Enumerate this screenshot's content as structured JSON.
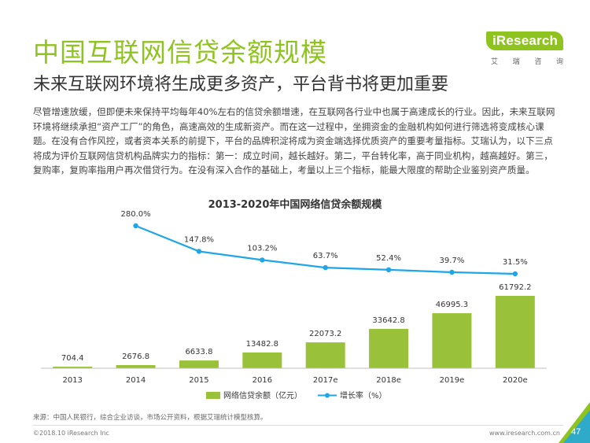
{
  "header": {
    "title": "中国互联网信贷余额规模",
    "subtitle": "未来互联网环境将生成更多资产，平台背书将更加重要"
  },
  "logo": {
    "name": "iResearch",
    "sub": [
      "艾",
      "瑞",
      "咨",
      "询"
    ]
  },
  "body_text": "尽管增速放缓，但即便未来保持平均每年40%左右的信贷余额增速，在互联网各行业中也属于高速成长的行业。因此，未来互联网环境将继续承担“资产工厂”的角色，高速高效的生成新资产。而在这一过程中，坐拥资金的金融机构如何进行筛选将变成核心课题。在没有合作风控，或者资本关系的前提下，平台的品牌积淀将成为资金端选择优质资产的重要考量指标。艾瑞认为，以下三点将成为评价互联网信贷机构品牌实力的指标：第一：成立时间，越长越好。第二，平台转化率，高于同业机构，越高越好。第三，复购率，复购率指用户再次借贷行为。在没有深入合作的基础上，考量以上三个指标，能最大限度的帮助企业鉴别资产质量。",
  "chart_data": {
    "type": "bar",
    "title": "2013-2020年中国网络信贷余额规模",
    "categories": [
      "2013",
      "2014",
      "2015",
      "2016",
      "2017e",
      "2018e",
      "2019e",
      "2020e"
    ],
    "series": [
      {
        "name": "网络信贷余额（亿元）",
        "type": "bar",
        "values": [
          704.4,
          2676.8,
          6633.8,
          13482.8,
          22073.2,
          33642.8,
          46995.3,
          61792.2
        ],
        "labels": [
          "704.4",
          "2676.8",
          "6633.8",
          "13482.8",
          "22073.2",
          "33642.8",
          "46995.3",
          "61792.2"
        ]
      },
      {
        "name": "增长率（%）",
        "type": "line",
        "values": [
          null,
          280.0,
          147.8,
          103.2,
          63.7,
          52.4,
          39.7,
          31.5
        ],
        "labels": [
          "",
          "280.0%",
          "147.8%",
          "103.2%",
          "63.7%",
          "52.4%",
          "39.7%",
          "31.5%"
        ]
      }
    ],
    "bar_color": "#99c23a",
    "line_color": "#1ea6e8",
    "legend_position": "bottom",
    "grid": false
  },
  "source": "来源：中国人民银行，综合企业访谈，市场公开资料，根据艾瑞统计模型核算。",
  "footer": {
    "copyright": "©2018.10 iResearch Inc",
    "website": "www.iresearch.com.cn",
    "page": "47"
  }
}
